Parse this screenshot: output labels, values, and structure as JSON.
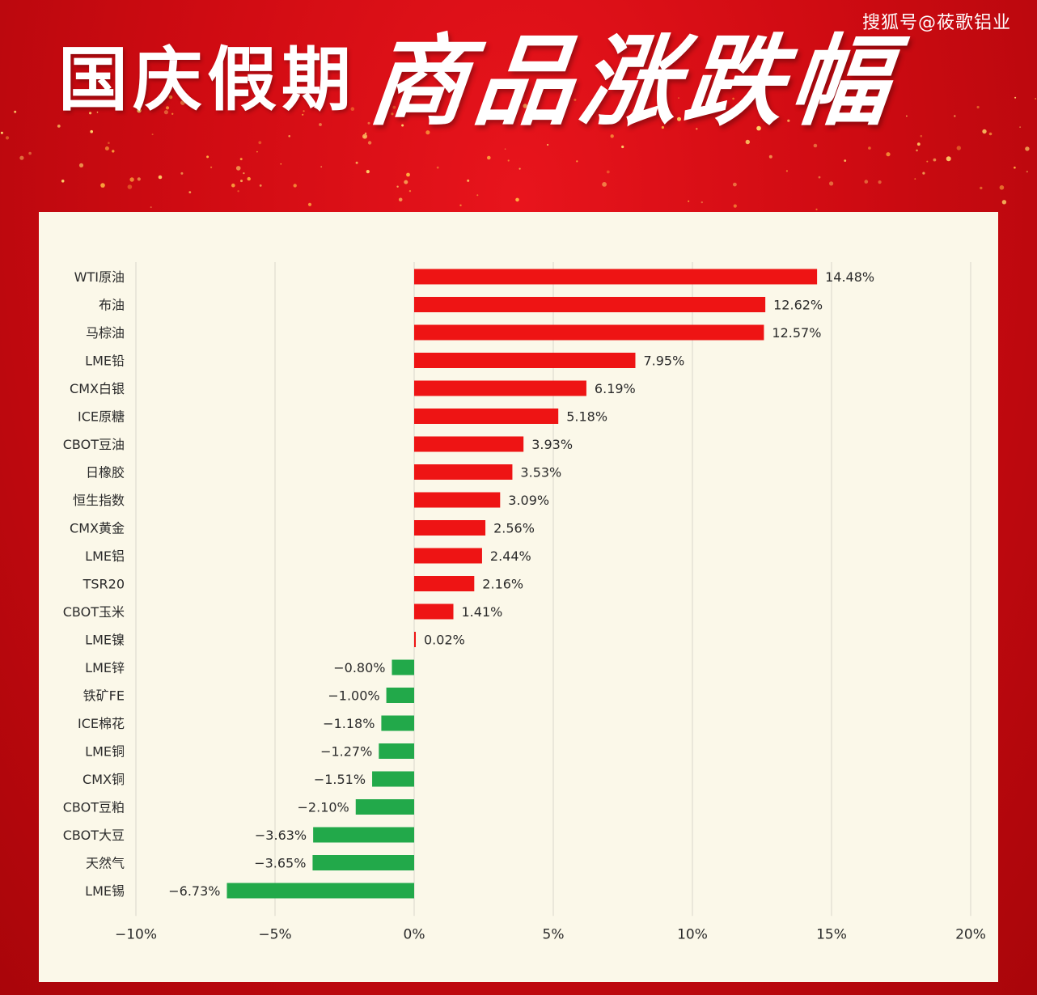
{
  "watermark": "搜狐号@莜歌铝业",
  "title": {
    "main": "国庆假期",
    "script": "商品涨跌幅"
  },
  "colors": {
    "positive": "#ee1414",
    "negative": "#22a94a",
    "background": "#d10e14",
    "panel": "#fbf8e9",
    "grid": "#d9d6cb"
  },
  "chart_data": {
    "type": "bar",
    "orientation": "horizontal",
    "categories": [
      "WTI原油",
      "布油",
      "马棕油",
      "LME铅",
      "CMX白银",
      "ICE原糖",
      "CBOT豆油",
      "日橡胶",
      "恒生指数",
      "CMX黄金",
      "LME铝",
      "TSR20",
      "CBOT玉米",
      "LME镍",
      "LME锌",
      "铁矿FE",
      "ICE棉花",
      "LME铜",
      "CMX铜",
      "CBOT豆粕",
      "CBOT大豆",
      "天然气",
      "LME锡"
    ],
    "values": [
      14.48,
      12.62,
      12.57,
      7.95,
      6.19,
      5.18,
      3.93,
      3.53,
      3.09,
      2.56,
      2.44,
      2.16,
      1.41,
      0.02,
      -0.8,
      -1.0,
      -1.18,
      -1.27,
      -1.51,
      -2.1,
      -3.63,
      -3.65,
      -6.73
    ],
    "value_labels": [
      "14.48%",
      "12.62%",
      "12.57%",
      "7.95%",
      "6.19%",
      "5.18%",
      "3.93%",
      "3.53%",
      "3.09%",
      "2.56%",
      "2.44%",
      "2.16%",
      "1.41%",
      "0.02%",
      "−0.80%",
      "−1.00%",
      "−1.18%",
      "−1.27%",
      "−1.51%",
      "−2.10%",
      "−3.63%",
      "−3.65%",
      "−6.73%"
    ],
    "xlim": [
      -10,
      20
    ],
    "xticks": [
      -10,
      -5,
      0,
      5,
      10,
      15,
      20
    ],
    "xtick_labels": [
      "−10%",
      "−5%",
      "0%",
      "5%",
      "10%",
      "15%",
      "20%"
    ],
    "grid": "vertical",
    "xlabel": "",
    "ylabel": ""
  }
}
